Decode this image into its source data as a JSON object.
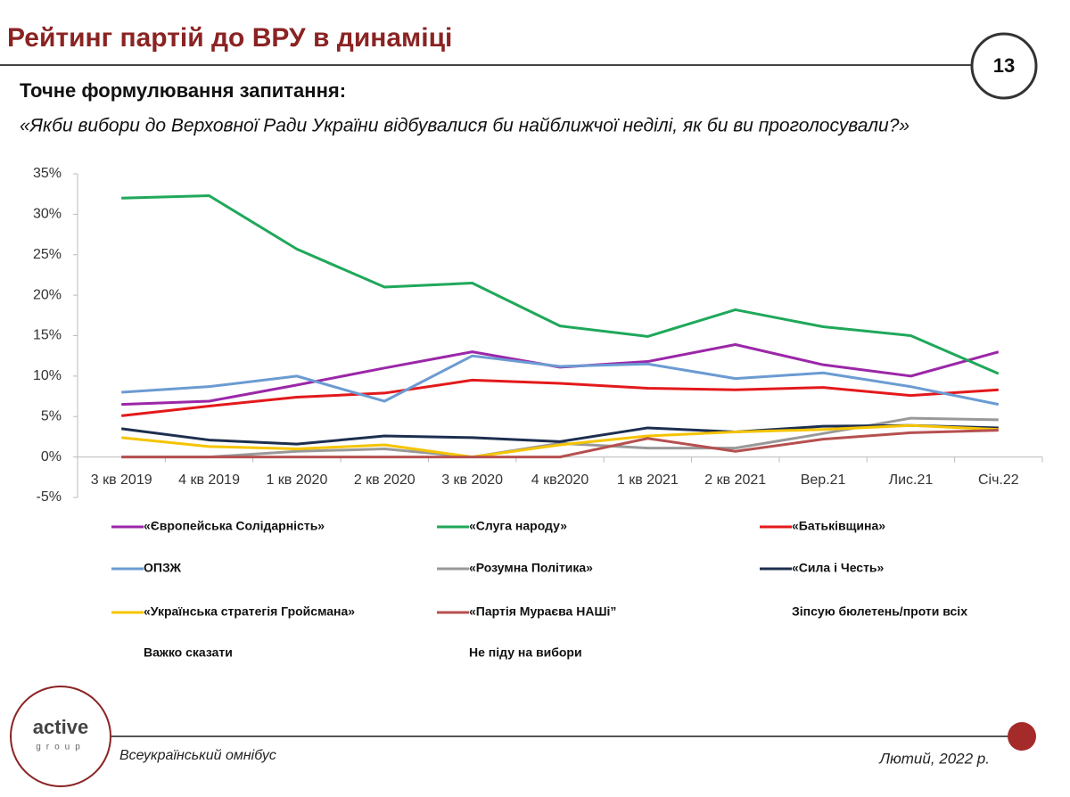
{
  "header": {
    "title": "Рейтинг партій до ВРУ в динаміці",
    "page_number": "13",
    "subtitle": "Точне формулювання запитання:",
    "question": "«Якби вибори до Верховної Ради України відбувалися би найближчої неділі, як би ви проголосували?»"
  },
  "chart_data": {
    "type": "line",
    "categories": [
      "3 кв 2019",
      "4 кв 2019",
      "1 кв 2020",
      "2 кв 2020",
      "3 кв 2020",
      "4 кв2020",
      "1 кв 2021",
      "2 кв 2021",
      "Вер.21",
      "Лис.21",
      "Січ.22"
    ],
    "ylim": [
      -5,
      35
    ],
    "yticks": [
      {
        "value": -5,
        "label": "-5%"
      },
      {
        "value": 0,
        "label": "0%"
      },
      {
        "value": 5,
        "label": "5%"
      },
      {
        "value": 10,
        "label": "10%"
      },
      {
        "value": 15,
        "label": "15%"
      },
      {
        "value": 20,
        "label": "20%"
      },
      {
        "value": 25,
        "label": "25%"
      },
      {
        "value": 30,
        "label": "30%"
      },
      {
        "value": 35,
        "label": "35%"
      }
    ],
    "grid": false,
    "series": [
      {
        "name": "«Європейська Солідарність»",
        "color": "#9b27a8",
        "values": [
          6.5,
          6.9,
          8.9,
          11.0,
          13.0,
          11.1,
          11.8,
          13.9,
          11.4,
          10.0,
          13.0
        ]
      },
      {
        "name": "«Слуга народу»",
        "color": "#1fa85a",
        "values": [
          32.0,
          32.3,
          25.7,
          21.0,
          21.5,
          16.2,
          14.9,
          18.2,
          16.1,
          15.0,
          10.3
        ]
      },
      {
        "name": "«Батьківщина»",
        "color": "#e3191b",
        "values": [
          5.1,
          6.3,
          7.4,
          7.9,
          9.5,
          9.1,
          8.5,
          8.3,
          8.6,
          7.6,
          8.3
        ]
      },
      {
        "name": "ОПЗЖ",
        "color": "#6b9bd2",
        "values": [
          8.0,
          8.7,
          10.0,
          6.9,
          12.5,
          11.2,
          11.5,
          9.7,
          10.4,
          8.7,
          6.5
        ]
      },
      {
        "name": "«Розумна Політика»",
        "color": "#999999",
        "values": [
          0,
          0,
          0.7,
          1.0,
          0,
          1.7,
          1.1,
          1.1,
          2.9,
          4.8,
          4.6
        ]
      },
      {
        "name": "«Сила і Честь»",
        "color": "#1d2f4f",
        "values": [
          3.5,
          2.1,
          1.6,
          2.6,
          2.4,
          1.9,
          3.6,
          3.1,
          3.8,
          3.9,
          3.6
        ]
      },
      {
        "name": "«Українська стратегія Гройсмана»",
        "color": "#f5c400",
        "values": [
          2.4,
          1.3,
          1.0,
          1.5,
          0,
          1.5,
          2.6,
          3.1,
          3.4,
          3.9,
          3.4
        ]
      },
      {
        "name": "«Партія Мураєва НАШі”",
        "color": "#b5504f",
        "values": [
          0,
          0,
          0,
          0,
          0,
          0,
          2.3,
          0.7,
          2.2,
          3.0,
          3.3
        ]
      },
      {
        "name": "Зіпсую бюлетень/проти всіх",
        "values": [
          null,
          null,
          null,
          null,
          null,
          null,
          null,
          null,
          null,
          null,
          null
        ]
      },
      {
        "name": "Важко сказати",
        "values": [
          null,
          null,
          null,
          null,
          null,
          null,
          null,
          null,
          null,
          null,
          null
        ]
      },
      {
        "name": "Не піду на вибори",
        "values": [
          null,
          null,
          null,
          null,
          null,
          null,
          null,
          null,
          null,
          null,
          null
        ]
      }
    ]
  },
  "footer": {
    "logo_main": "active",
    "logo_sub": "group",
    "source": "Всеукраїнський омнібус",
    "date": "Лютий, 2022 р."
  }
}
